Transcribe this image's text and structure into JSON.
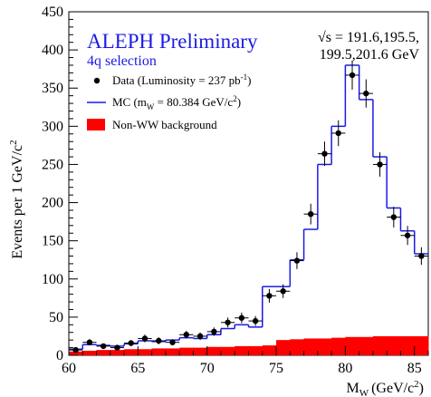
{
  "chart_data": {
    "type": "histogram",
    "title": "ALEPH Preliminary",
    "subtitle": "4q selection",
    "energy_label_line1": "√s = 191.6,195.5,",
    "energy_label_line2": "199.5,201.6 GeV",
    "xlabel_main": "M",
    "xlabel_sub": "W",
    "xlabel_unit": "(GeV/c",
    "xlabel_sup": "2",
    "xlabel_close": ")",
    "ylabel_main": "Events per 1 GeV/c",
    "ylabel_sup": "2",
    "xlim": [
      60,
      86
    ],
    "ylim": [
      0,
      450
    ],
    "x_ticks": [
      "60",
      "65",
      "70",
      "75",
      "80",
      "85"
    ],
    "y_ticks": [
      "0",
      "50",
      "100",
      "150",
      "200",
      "250",
      "300",
      "350",
      "400",
      "450"
    ],
    "legend": {
      "data_label": "Data (Luminosity = 237 pb",
      "data_sup": "-1",
      "data_close": ")",
      "mc_label": "MC (m",
      "mc_sub": "W",
      "mc_mid": " = 80.384 GeV/c",
      "mc_sup": "2",
      "mc_close": ")",
      "bkg_label": "Non-WW background"
    },
    "colors": {
      "mc": "#1a1ae6",
      "background": "#ff0000",
      "data": "#000000",
      "title": "#1a1ae6"
    },
    "bin_edges": [
      60,
      61,
      62,
      63,
      64,
      65,
      66,
      67,
      68,
      69,
      70,
      71,
      72,
      73,
      74,
      75,
      76,
      77,
      78,
      79,
      80,
      81,
      82,
      83,
      84,
      85,
      86
    ],
    "data_points": {
      "x": [
        60.5,
        61.5,
        62.5,
        63.5,
        64.5,
        65.5,
        66.5,
        67.5,
        68.5,
        69.5,
        70.5,
        71.5,
        72.5,
        73.5,
        74.5,
        75.5,
        76.5,
        77.5,
        78.5,
        79.5,
        80.5,
        81.5,
        82.5,
        83.5,
        84.5,
        85.5
      ],
      "y": [
        7,
        17,
        12,
        10,
        16,
        22,
        19,
        17,
        27,
        25,
        31,
        43,
        49,
        45,
        78,
        84,
        124,
        185,
        264,
        291,
        367,
        343,
        250,
        181,
        157,
        130
      ],
      "yerr": [
        3,
        4,
        3.5,
        3,
        4,
        5,
        4.5,
        4,
        5,
        5,
        5.5,
        6.5,
        7,
        6.5,
        9,
        9,
        11,
        13.5,
        16,
        17,
        19,
        18.5,
        16,
        13.5,
        12.5,
        11.5
      ]
    },
    "mc_values": [
      8,
      14,
      13,
      12,
      15,
      19,
      18,
      20,
      23,
      22,
      27,
      35,
      40,
      37,
      90,
      90,
      125,
      165,
      250,
      300,
      380,
      335,
      260,
      193,
      163,
      133
    ],
    "background_values": [
      5,
      6,
      7,
      7,
      8,
      8,
      9,
      9,
      10,
      10,
      11,
      11,
      12,
      12,
      13,
      20,
      21,
      22,
      22,
      23,
      24,
      24,
      25,
      25,
      25,
      25
    ]
  }
}
